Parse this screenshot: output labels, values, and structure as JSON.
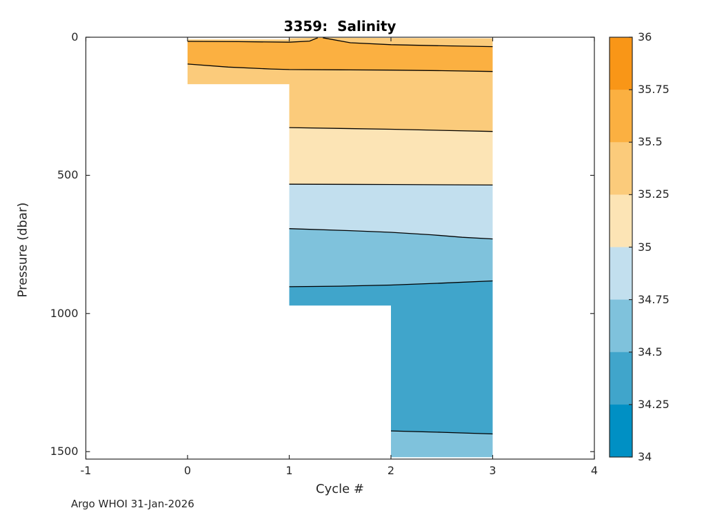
{
  "title": "3359:  Salinity",
  "xlabel": "Cycle #",
  "ylabel": "Pressure (dbar)",
  "annotation": "Argo WHOI 31-Jan-2026",
  "chart_data": {
    "type": "filled-contour",
    "title": "3359:  Salinity",
    "xlabel": "Cycle #",
    "ylabel": "Pressure (dbar)",
    "x_units": "cycle number",
    "y_units": "dbar",
    "xlim": [
      -1,
      4
    ],
    "ylim": [
      0,
      1527
    ],
    "y_inverted": true,
    "xticks": [
      "-1",
      "0",
      "1",
      "2",
      "3",
      "4"
    ],
    "xtick_values": [
      -1,
      0,
      1,
      2,
      3,
      4
    ],
    "yticks": [
      "0",
      "500",
      "1000",
      "1500"
    ],
    "ytick_values": [
      0,
      500,
      1000,
      1500
    ],
    "grid": false,
    "colorbar": {
      "min": 34,
      "max": 36,
      "step": 0.25,
      "tick_labels": [
        "36",
        "35.75",
        "35.5",
        "35.25",
        "35",
        "34.75",
        "34.5",
        "34.25",
        "34"
      ],
      "band_colors_low_to_high": [
        "#0090c4",
        "#40a5cb",
        "#7fc2dc",
        "#c2dfee",
        "#fce4b5",
        "#fbcb7b",
        "#fbb041",
        "#f99617"
      ],
      "band_ranges": [
        "34-34.25",
        "34.25-34.5",
        "34.5-34.75",
        "34.75-35",
        "35-35.25",
        "35.25-35.5",
        "35.5-35.75",
        "35.75-36"
      ]
    },
    "profile_columns": [
      {
        "cycle_range": [
          0,
          1
        ],
        "p_top_dbar": 8,
        "p_bottom_dbar": 170
      },
      {
        "cycle_range": [
          1,
          2
        ],
        "p_top_dbar": 4,
        "p_bottom_dbar": 971
      },
      {
        "cycle_range": [
          2,
          3
        ],
        "p_top_dbar": 4,
        "p_bottom_dbar": 1520
      }
    ],
    "contour_lines": [
      {
        "level": 35.5,
        "points": [
          [
            0,
            15
          ],
          [
            0.5,
            16
          ],
          [
            1,
            18
          ],
          [
            1.2,
            14
          ],
          [
            1.28,
            2
          ]
        ]
      },
      {
        "level": 35.5,
        "points": [
          [
            1.33,
            2
          ],
          [
            1.6,
            20
          ],
          [
            2,
            27
          ],
          [
            2.5,
            31
          ],
          [
            3,
            34
          ]
        ]
      },
      {
        "level": 35.5,
        "points": [
          [
            0,
            97
          ],
          [
            0.4,
            108
          ],
          [
            0.82,
            115
          ],
          [
            1,
            117
          ],
          [
            1.5,
            118
          ],
          [
            2,
            119
          ],
          [
            2.5,
            121
          ],
          [
            3,
            124
          ]
        ]
      },
      {
        "level": 35.25,
        "points": [
          [
            1,
            327
          ],
          [
            1.5,
            330
          ],
          [
            2,
            333
          ],
          [
            2.5,
            337
          ],
          [
            3,
            341
          ]
        ]
      },
      {
        "level": 35.0,
        "points": [
          [
            1,
            532
          ],
          [
            2,
            533
          ],
          [
            3,
            535
          ]
        ]
      },
      {
        "level": 34.75,
        "points": [
          [
            1,
            693
          ],
          [
            1.6,
            700
          ],
          [
            2,
            706
          ],
          [
            2.4,
            715
          ],
          [
            2.7,
            724
          ],
          [
            3,
            730
          ]
        ]
      },
      {
        "level": 34.5,
        "points": [
          [
            1,
            903
          ],
          [
            1.5,
            901
          ],
          [
            2,
            897
          ],
          [
            2.5,
            890
          ],
          [
            3,
            882
          ]
        ]
      },
      {
        "level": 34.5,
        "points": [
          [
            2,
            1425
          ],
          [
            2.5,
            1430
          ],
          [
            3,
            1436
          ]
        ]
      }
    ],
    "regions": [
      {
        "band": "35.25-35.5",
        "level_index": 5,
        "points": [
          [
            0,
            8
          ],
          [
            1,
            8
          ],
          [
            1,
            4
          ],
          [
            1.28,
            2
          ],
          [
            1.2,
            14
          ],
          [
            1,
            18
          ],
          [
            0.5,
            16
          ],
          [
            0,
            15
          ]
        ]
      },
      {
        "band": "35.25-35.5",
        "level_index": 5,
        "points": [
          [
            1.33,
            2
          ],
          [
            3,
            4
          ],
          [
            3,
            34
          ],
          [
            2.5,
            31
          ],
          [
            2,
            27
          ],
          [
            1.6,
            20
          ]
        ]
      },
      {
        "band": "35.5-35.75",
        "level_index": 6,
        "points": [
          [
            0,
            15
          ],
          [
            0.5,
            16
          ],
          [
            1,
            18
          ],
          [
            1.2,
            14
          ],
          [
            1.28,
            2
          ],
          [
            1.33,
            2
          ],
          [
            1.6,
            20
          ],
          [
            2,
            27
          ],
          [
            2.5,
            31
          ],
          [
            3,
            34
          ],
          [
            3,
            124
          ],
          [
            2.5,
            121
          ],
          [
            2,
            119
          ],
          [
            1.5,
            118
          ],
          [
            1,
            117
          ],
          [
            0.82,
            115
          ],
          [
            0.4,
            108
          ],
          [
            0,
            97
          ]
        ]
      },
      {
        "band": "35.25-35.5",
        "level_index": 5,
        "points": [
          [
            0,
            97
          ],
          [
            0.4,
            108
          ],
          [
            0.82,
            115
          ],
          [
            1,
            117
          ],
          [
            1.5,
            118
          ],
          [
            2,
            119
          ],
          [
            2.5,
            121
          ],
          [
            3,
            124
          ],
          [
            3,
            341
          ],
          [
            2.5,
            337
          ],
          [
            2,
            333
          ],
          [
            1.5,
            330
          ],
          [
            1,
            327
          ],
          [
            1,
            170
          ],
          [
            0,
            170
          ]
        ]
      },
      {
        "band": "35-35.25",
        "level_index": 4,
        "points": [
          [
            1,
            327
          ],
          [
            1.5,
            330
          ],
          [
            2,
            333
          ],
          [
            2.5,
            337
          ],
          [
            3,
            341
          ],
          [
            3,
            535
          ],
          [
            2,
            533
          ],
          [
            1,
            532
          ]
        ]
      },
      {
        "band": "34.75-35",
        "level_index": 3,
        "points": [
          [
            1,
            532
          ],
          [
            2,
            533
          ],
          [
            3,
            535
          ],
          [
            3,
            730
          ],
          [
            2.7,
            724
          ],
          [
            2.4,
            715
          ],
          [
            2,
            706
          ],
          [
            1.6,
            700
          ],
          [
            1,
            693
          ]
        ]
      },
      {
        "band": "34.5-34.75",
        "level_index": 2,
        "points": [
          [
            1,
            693
          ],
          [
            1.6,
            700
          ],
          [
            2,
            706
          ],
          [
            2.4,
            715
          ],
          [
            2.7,
            724
          ],
          [
            3,
            730
          ],
          [
            3,
            882
          ],
          [
            2.5,
            890
          ],
          [
            2,
            897
          ],
          [
            1.5,
            901
          ],
          [
            1,
            903
          ]
        ]
      },
      {
        "band": "34.25-34.5",
        "level_index": 1,
        "points": [
          [
            1,
            903
          ],
          [
            1.5,
            901
          ],
          [
            2,
            897
          ],
          [
            2.5,
            890
          ],
          [
            3,
            882
          ],
          [
            3,
            1436
          ],
          [
            2.5,
            1430
          ],
          [
            2,
            1425
          ],
          [
            2,
            971
          ],
          [
            1,
            971
          ]
        ]
      },
      {
        "band": "34.5-34.75",
        "level_index": 2,
        "points": [
          [
            2,
            1425
          ],
          [
            2.5,
            1430
          ],
          [
            3,
            1436
          ],
          [
            3,
            1520
          ],
          [
            2,
            1520
          ]
        ]
      }
    ],
    "annotation": "Argo WHOI 31-Jan-2026",
    "legend_position": "colorbar-right"
  }
}
